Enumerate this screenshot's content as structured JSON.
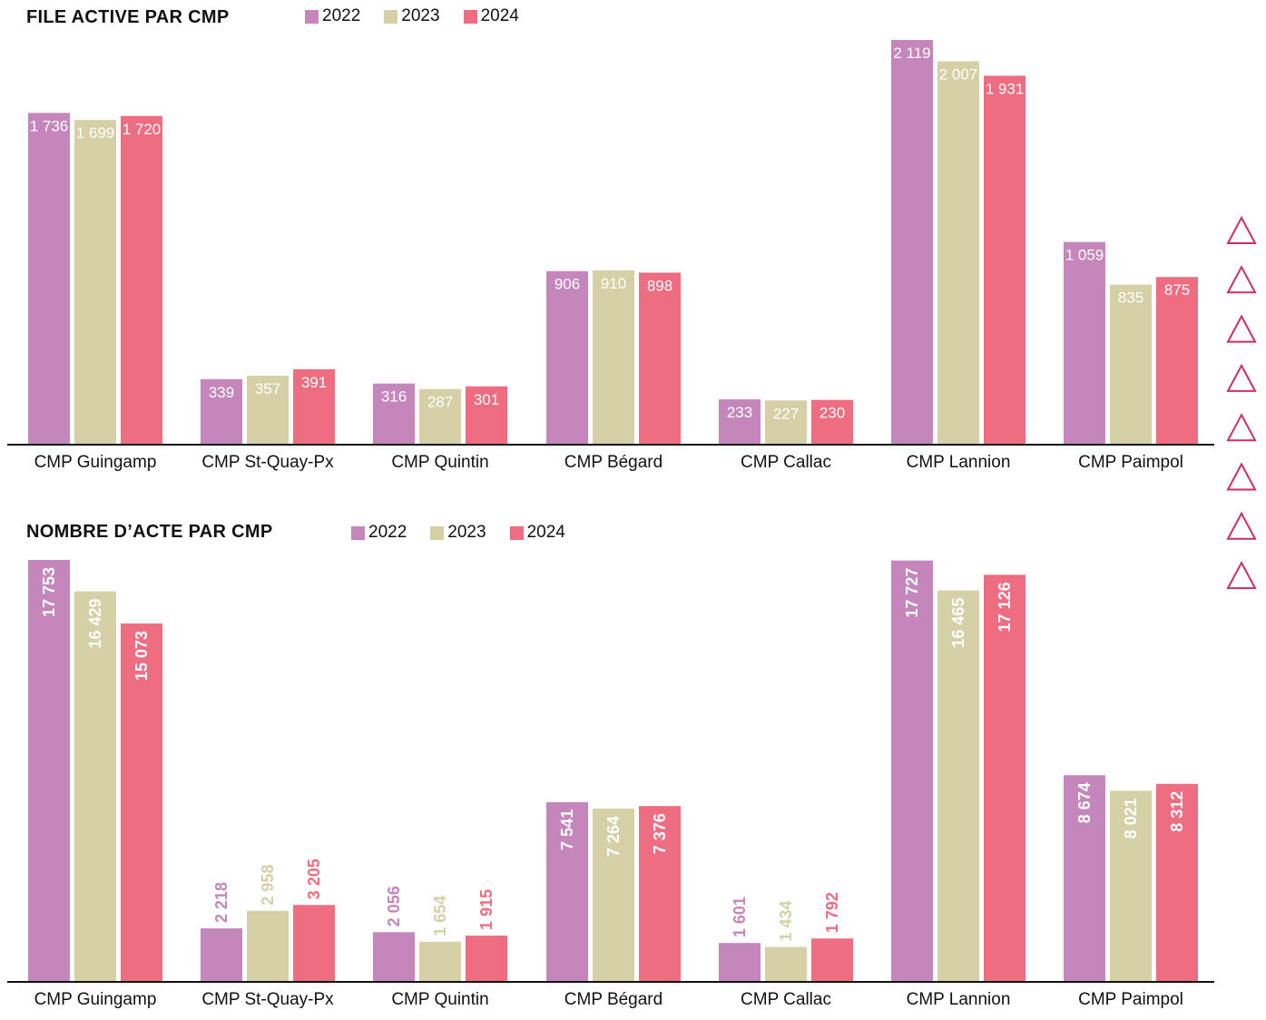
{
  "colors": {
    "2022": "#c587bb",
    "2023": "#d5d0a5",
    "2024": "#ef6d80",
    "axis": "#111111",
    "deco": "#cc2e6a"
  },
  "decoration": {
    "icon": "triangle-outline-icon",
    "count": 8
  },
  "chart_data": [
    {
      "type": "bar",
      "title": "FILE ACTIVE PAR CMP",
      "xlabel": "",
      "ylabel": "",
      "categories": [
        "CMP Guingamp",
        "CMP St-Quay-Px",
        "CMP Quintin",
        "CMP Bégard",
        "CMP Callac",
        "CMP Lannion",
        "CMP Paimpol"
      ],
      "legend_position": "top",
      "ylim": [
        0,
        2119
      ],
      "grid": false,
      "label_orientation": "horizontal",
      "series": [
        {
          "name": "2022",
          "values": [
            1736,
            339,
            316,
            906,
            233,
            2119,
            1059
          ],
          "labels": [
            "1 736",
            "339",
            "316",
            "906",
            "233",
            "2 119",
            "1 059"
          ]
        },
        {
          "name": "2023",
          "values": [
            1699,
            357,
            287,
            910,
            227,
            2007,
            835
          ],
          "labels": [
            "1 699",
            "357",
            "287",
            "910",
            "227",
            "2 007",
            "835"
          ]
        },
        {
          "name": "2024",
          "values": [
            1720,
            391,
            301,
            898,
            230,
            1931,
            875
          ],
          "labels": [
            "1 720",
            "391",
            "301",
            "898",
            "230",
            "1 931",
            "875"
          ]
        }
      ]
    },
    {
      "type": "bar",
      "title": "NOMBRE D’ACTE PAR CMP",
      "xlabel": "",
      "ylabel": "",
      "categories": [
        "CMP Guingamp",
        "CMP St-Quay-Px",
        "CMP Quintin",
        "CMP Bégard",
        "CMP Callac",
        "CMP Lannion",
        "CMP Paimpol"
      ],
      "legend_position": "top",
      "ylim": [
        0,
        17753
      ],
      "grid": false,
      "label_orientation": "vertical",
      "series": [
        {
          "name": "2022",
          "values": [
            17753,
            2218,
            2056,
            7541,
            1601,
            17727,
            8674
          ],
          "labels": [
            "17 753",
            "2 218",
            "2 056",
            "7 541",
            "1 601",
            "17 727",
            "8 674"
          ]
        },
        {
          "name": "2023",
          "values": [
            16429,
            2958,
            1654,
            7264,
            1434,
            16465,
            8021
          ],
          "labels": [
            "16 429",
            "2 958",
            "1 654",
            "7 264",
            "1 434",
            "16 465",
            "8 021"
          ]
        },
        {
          "name": "2024",
          "values": [
            15073,
            3205,
            1915,
            7376,
            1792,
            17126,
            8312
          ],
          "labels": [
            "15 073",
            "3 205",
            "1 915",
            "7 376",
            "1 792",
            "17 126",
            "8 312"
          ]
        }
      ]
    }
  ]
}
